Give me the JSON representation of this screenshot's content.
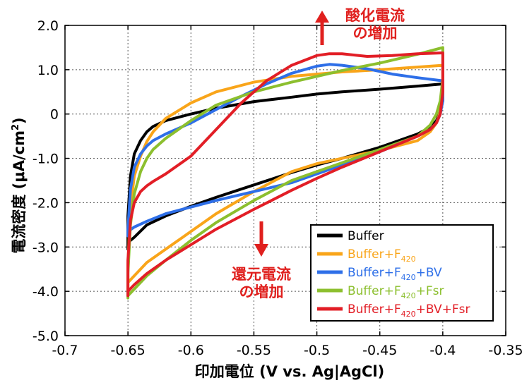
{
  "chart_data": {
    "type": "line",
    "title": "",
    "xlabel": "印加電位 (V vs. Ag|AgCl)",
    "ylabel_main": "電流密度 (μA/cm",
    "ylabel_sup": "2",
    "ylabel_end": ")",
    "xlim": [
      -0.7,
      -0.35
    ],
    "ylim": [
      -5.0,
      2.0
    ],
    "x_ticks": [
      -0.7,
      -0.65,
      -0.6,
      -0.55,
      -0.5,
      -0.45,
      -0.4,
      -0.35
    ],
    "x_tick_labels": [
      "-0.7",
      "-0.65",
      "-0.6",
      "-0.55",
      "-0.5",
      "-0.45",
      "-0.4",
      "-0.35"
    ],
    "y_ticks": [
      2.0,
      1.0,
      0,
      -1.0,
      -2.0,
      -3.0,
      -4.0,
      -5.0
    ],
    "y_tick_labels": [
      "2.0",
      "1.0",
      "0",
      "-1.0",
      "-2.0",
      "-3.0",
      "-4.0",
      "-5.0"
    ],
    "grid": true,
    "legend_position": "bottom-right",
    "annotations": {
      "oxidation": [
        "酸化電流",
        "の増加"
      ],
      "reduction": [
        "還元電流",
        "の増加"
      ]
    },
    "series": [
      {
        "label_base": "Buffer",
        "label_sub": "",
        "label_tail": "",
        "color": "#000000",
        "text_color": "#000000",
        "x": [
          -0.65,
          -0.648,
          -0.645,
          -0.64,
          -0.635,
          -0.63,
          -0.62,
          -0.6,
          -0.58,
          -0.55,
          -0.52,
          -0.5,
          -0.48,
          -0.45,
          -0.42,
          -0.4,
          -0.4,
          -0.402,
          -0.405,
          -0.41,
          -0.42,
          -0.45,
          -0.48,
          -0.5,
          -0.52,
          -0.55,
          -0.58,
          -0.6,
          -0.62,
          -0.635,
          -0.645,
          -0.65,
          -0.65
        ],
        "y": [
          -2.3,
          -1.4,
          -0.9,
          -0.6,
          -0.4,
          -0.28,
          -0.15,
          0.0,
          0.13,
          0.28,
          0.38,
          0.45,
          0.5,
          0.56,
          0.63,
          0.68,
          0.3,
          0.05,
          -0.15,
          -0.3,
          -0.45,
          -0.75,
          -1.0,
          -1.15,
          -1.32,
          -1.6,
          -1.88,
          -2.08,
          -2.3,
          -2.5,
          -2.78,
          -2.9,
          -3.05
        ]
      },
      {
        "label_base": "Buffer+F",
        "label_sub": "420",
        "label_tail": "",
        "color": "#f9a51a",
        "text_color": "#f9a51a",
        "x": [
          -0.65,
          -0.648,
          -0.645,
          -0.64,
          -0.635,
          -0.63,
          -0.62,
          -0.6,
          -0.58,
          -0.55,
          -0.52,
          -0.5,
          -0.48,
          -0.45,
          -0.42,
          -0.4,
          -0.4,
          -0.402,
          -0.405,
          -0.41,
          -0.42,
          -0.45,
          -0.48,
          -0.5,
          -0.52,
          -0.55,
          -0.58,
          -0.6,
          -0.62,
          -0.635,
          -0.645,
          -0.65,
          -0.65
        ],
        "y": [
          -3.4,
          -2.1,
          -1.4,
          -0.95,
          -0.62,
          -0.4,
          -0.1,
          0.25,
          0.5,
          0.72,
          0.85,
          0.9,
          0.95,
          1.0,
          1.06,
          1.1,
          0.4,
          0.05,
          -0.2,
          -0.4,
          -0.6,
          -0.82,
          -1.0,
          -1.12,
          -1.3,
          -1.75,
          -2.25,
          -2.65,
          -3.05,
          -3.35,
          -3.65,
          -3.8,
          -3.95
        ]
      },
      {
        "label_base": "Buffer+F",
        "label_sub": "420",
        "label_tail": "+BV",
        "color": "#2e6fe8",
        "text_color": "#2e6fe8",
        "x": [
          -0.65,
          -0.648,
          -0.645,
          -0.64,
          -0.635,
          -0.63,
          -0.62,
          -0.6,
          -0.58,
          -0.56,
          -0.54,
          -0.52,
          -0.5,
          -0.49,
          -0.48,
          -0.46,
          -0.44,
          -0.42,
          -0.4,
          -0.4,
          -0.402,
          -0.405,
          -0.41,
          -0.42,
          -0.45,
          -0.48,
          -0.5,
          -0.52,
          -0.55,
          -0.58,
          -0.6,
          -0.62,
          -0.635,
          -0.645,
          -0.65,
          -0.65
        ],
        "y": [
          -2.6,
          -1.7,
          -1.2,
          -0.9,
          -0.72,
          -0.6,
          -0.45,
          -0.2,
          0.1,
          0.4,
          0.68,
          0.92,
          1.08,
          1.12,
          1.1,
          1.02,
          0.9,
          0.82,
          0.75,
          0.3,
          0.0,
          -0.2,
          -0.35,
          -0.5,
          -0.85,
          -1.15,
          -1.35,
          -1.55,
          -1.75,
          -1.95,
          -2.1,
          -2.25,
          -2.42,
          -2.55,
          -2.65,
          -2.75
        ]
      },
      {
        "label_base": "Buffer+F",
        "label_sub": "420",
        "label_tail": "+Fsr",
        "color": "#8cbf2e",
        "text_color": "#8cbf2e",
        "x": [
          -0.65,
          -0.648,
          -0.645,
          -0.64,
          -0.635,
          -0.63,
          -0.62,
          -0.6,
          -0.58,
          -0.55,
          -0.52,
          -0.5,
          -0.48,
          -0.45,
          -0.42,
          -0.4,
          -0.4,
          -0.402,
          -0.405,
          -0.41,
          -0.42,
          -0.45,
          -0.48,
          -0.5,
          -0.52,
          -0.55,
          -0.58,
          -0.6,
          -0.62,
          -0.635,
          -0.645,
          -0.65,
          -0.65
        ],
        "y": [
          -3.6,
          -2.5,
          -1.8,
          -1.3,
          -1.0,
          -0.8,
          -0.55,
          -0.15,
          0.2,
          0.5,
          0.72,
          0.85,
          0.98,
          1.15,
          1.35,
          1.5,
          0.8,
          0.3,
          0.0,
          -0.25,
          -0.5,
          -0.8,
          -1.1,
          -1.3,
          -1.5,
          -1.95,
          -2.45,
          -2.85,
          -3.3,
          -3.65,
          -3.95,
          -4.1,
          -4.15
        ]
      },
      {
        "label_base": "Buffer+F",
        "label_sub": "420",
        "label_tail": "+BV+Fsr",
        "color": "#e21e26",
        "text_color": "#e21e26",
        "x": [
          -0.65,
          -0.648,
          -0.645,
          -0.64,
          -0.635,
          -0.63,
          -0.62,
          -0.6,
          -0.58,
          -0.56,
          -0.54,
          -0.52,
          -0.5,
          -0.49,
          -0.48,
          -0.46,
          -0.44,
          -0.42,
          -0.4,
          -0.4,
          -0.402,
          -0.405,
          -0.41,
          -0.42,
          -0.45,
          -0.48,
          -0.5,
          -0.52,
          -0.55,
          -0.58,
          -0.6,
          -0.62,
          -0.635,
          -0.645,
          -0.65,
          -0.65
        ],
        "y": [
          -3.3,
          -2.4,
          -2.0,
          -1.75,
          -1.62,
          -1.52,
          -1.35,
          -0.95,
          -0.35,
          0.25,
          0.75,
          1.1,
          1.32,
          1.36,
          1.36,
          1.3,
          1.32,
          1.36,
          1.38,
          0.5,
          0.0,
          -0.2,
          -0.35,
          -0.5,
          -0.85,
          -1.2,
          -1.45,
          -1.72,
          -2.15,
          -2.6,
          -2.95,
          -3.3,
          -3.6,
          -3.85,
          -4.0,
          -4.1
        ]
      }
    ]
  }
}
